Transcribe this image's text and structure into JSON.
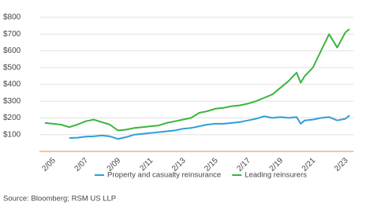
{
  "chart_data": {
    "type": "line",
    "x": [
      "2004-07",
      "2005-01",
      "2005-07",
      "2006-01",
      "2006-07",
      "2007-01",
      "2007-07",
      "2008-01",
      "2008-07",
      "2009-01",
      "2009-07",
      "2010-01",
      "2010-07",
      "2011-01",
      "2011-07",
      "2012-01",
      "2012-07",
      "2013-01",
      "2013-07",
      "2014-01",
      "2014-07",
      "2015-01",
      "2015-07",
      "2016-01",
      "2016-07",
      "2017-01",
      "2017-07",
      "2018-01",
      "2018-07",
      "2019-01",
      "2019-07",
      "2020-01",
      "2020-04",
      "2020-07",
      "2021-01",
      "2021-07",
      "2022-01",
      "2022-07",
      "2023-01",
      "2023-04"
    ],
    "series": [
      {
        "name": "Property and casualty reinsurance",
        "color": "#2e9fd9",
        "values": [
          null,
          null,
          null,
          80,
          82,
          88,
          90,
          95,
          90,
          75,
          85,
          100,
          105,
          110,
          115,
          120,
          125,
          135,
          140,
          150,
          160,
          165,
          165,
          170,
          175,
          185,
          195,
          210,
          200,
          205,
          200,
          205,
          165,
          185,
          190,
          200,
          205,
          185,
          195,
          215
        ]
      },
      {
        "name": "Leading reinsurers",
        "color": "#3cb43c",
        "values": [
          170,
          165,
          160,
          145,
          160,
          180,
          190,
          175,
          160,
          125,
          130,
          140,
          145,
          150,
          155,
          170,
          180,
          190,
          200,
          230,
          240,
          255,
          260,
          270,
          275,
          285,
          300,
          320,
          340,
          380,
          420,
          470,
          410,
          450,
          500,
          600,
          700,
          620,
          710,
          730
        ]
      }
    ],
    "xlim": [
      "2004-03",
      "2023-07"
    ],
    "xticks": [
      {
        "value": "2005-02",
        "label": "2/05"
      },
      {
        "value": "2007-02",
        "label": "2/07"
      },
      {
        "value": "2009-02",
        "label": "2/09"
      },
      {
        "value": "2011-02",
        "label": "2/11"
      },
      {
        "value": "2013-02",
        "label": "2/13"
      },
      {
        "value": "2015-02",
        "label": "2/15"
      },
      {
        "value": "2017-02",
        "label": "2/17"
      },
      {
        "value": "2019-02",
        "label": "2/19"
      },
      {
        "value": "2021-02",
        "label": "2/21"
      },
      {
        "value": "2023-02",
        "label": "2/23"
      }
    ],
    "ylim": [
      0,
      800
    ],
    "yticks": [
      {
        "value": 100,
        "label": "$100"
      },
      {
        "value": 200,
        "label": "$200"
      },
      {
        "value": 300,
        "label": "$300"
      },
      {
        "value": 400,
        "label": "$400"
      },
      {
        "value": 500,
        "label": "$500"
      },
      {
        "value": 600,
        "label": "$600"
      },
      {
        "value": 700,
        "label": "$700"
      },
      {
        "value": 800,
        "label": "$800"
      }
    ],
    "grid": true,
    "legend": "bottom",
    "source": "Source: Bloomberg; RSM US LLP"
  }
}
